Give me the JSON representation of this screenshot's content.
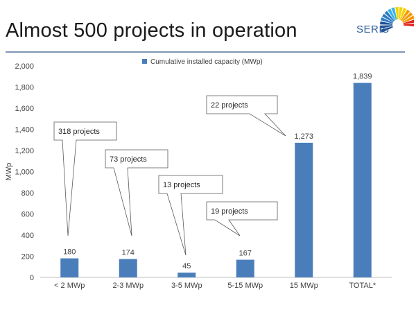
{
  "slide": {
    "title": "Almost 500 projects in operation",
    "logo_text": "SERIS",
    "logo_colors": [
      "#1e4f96",
      "#2f7bc4",
      "#39b3e6",
      "#f5d200",
      "#f39a00",
      "#e2231a"
    ]
  },
  "chart_data": {
    "type": "bar",
    "title": "",
    "ylabel": "MWp",
    "xlabel": "",
    "ylim": [
      0,
      2000
    ],
    "yticks": [
      "0",
      "200",
      "400",
      "600",
      "800",
      "1,000",
      "1,200",
      "1,400",
      "1,600",
      "1,800",
      "2,000"
    ],
    "categories": [
      "< 2 MWp",
      "2-3 MWp",
      "3-5 MWp",
      "5-15 MWp",
      "15 MWp",
      "TOTAL*"
    ],
    "series": [
      {
        "name": "Cumulative installed capacity (MWp)",
        "values": [
          180,
          174,
          45,
          167,
          1273,
          1839
        ],
        "value_labels": [
          "180",
          "174",
          "45",
          "167",
          "1,273",
          "1,839"
        ],
        "color": "#4a7ebb"
      }
    ],
    "legend": "top-center",
    "grid": false,
    "annotations": [
      "318 projects",
      "73 projects",
      "13 projects",
      "19 projects",
      "22 projects"
    ]
  }
}
